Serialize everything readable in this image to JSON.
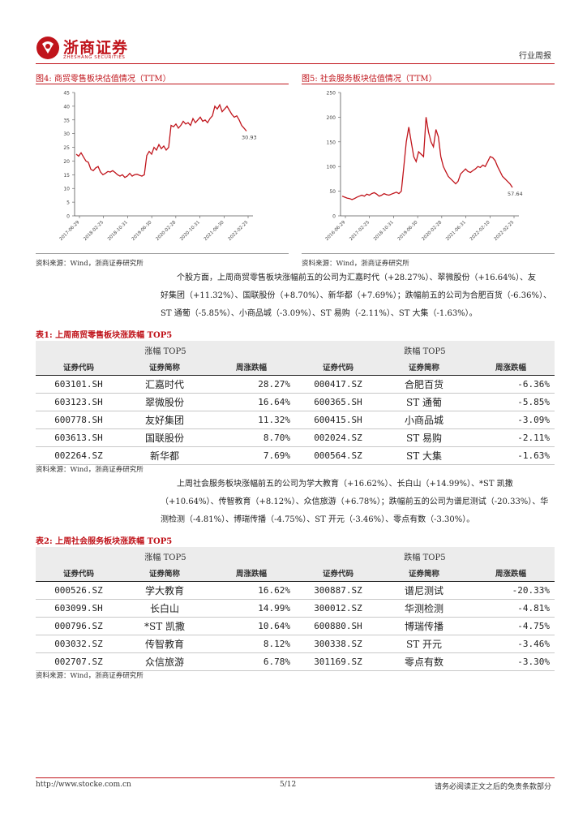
{
  "header": {
    "brand_cn": "浙商证券",
    "brand_en": "ZHESHANG SECURITIES",
    "category": "行业周报"
  },
  "fig4": {
    "title": "图4:  商贸零售板块估值情况（TTM）",
    "last_label": "30.93",
    "source": "资料来源：Wind，浙商证券研究所",
    "chart_data": {
      "type": "line",
      "ylim": [
        0,
        45
      ],
      "yticks": [
        "0",
        "5",
        "10",
        "15",
        "20",
        "25",
        "30",
        "35",
        "40",
        "45"
      ],
      "xticks": [
        "2017-06-29",
        "2018-02-25",
        "2018-10-31",
        "2019-06-30",
        "2020-02-28",
        "2020-10-31",
        "2021-06-30",
        "2022-02-25"
      ],
      "values": [
        22.5,
        21.8,
        23.0,
        21.5,
        20.0,
        19.5,
        17.0,
        16.5,
        17.5,
        18.0,
        16.0,
        15.0,
        15.5,
        16.2,
        16.0,
        16.5,
        15.8,
        15.0,
        14.5,
        15.0,
        14.0,
        14.5,
        15.5,
        14.5,
        15.0,
        15.2,
        14.8,
        14.5,
        15.0,
        22.0,
        23.5,
        22.5,
        25.0,
        24.0,
        26.0,
        24.5,
        25.5,
        24.0,
        25.0,
        33.0,
        32.5,
        33.5,
        32.0,
        33.0,
        34.5,
        33.5,
        34.0,
        33.0,
        35.5,
        34.0,
        35.0,
        36.0,
        34.5,
        35.0,
        34.0,
        35.5,
        36.5,
        40.0,
        39.0,
        40.5,
        38.0,
        39.0,
        40.0,
        38.5,
        37.0,
        36.0,
        36.5,
        35.0,
        33.0,
        32.0,
        30.93
      ]
    }
  },
  "fig5": {
    "title": "图5:  社会服务板块估值情况（TTM）",
    "last_label": "57.64",
    "source": "资料来源：Wind，浙商证券研究所",
    "chart_data": {
      "type": "line",
      "ylim": [
        0,
        250
      ],
      "yticks": [
        "0",
        "50",
        "100",
        "150",
        "200",
        "250"
      ],
      "xticks": [
        "2016-06-29",
        "2017-02-25",
        "2018-10-31",
        "2019-06-30",
        "2020-02-28",
        "2021-06-31",
        "2022-02-10",
        "2022-02-25"
      ],
      "values": [
        40,
        38,
        36,
        35,
        33,
        35,
        38,
        40,
        42,
        40,
        44,
        42,
        45,
        47,
        44,
        40,
        42,
        45,
        43,
        42,
        44,
        46,
        48,
        45,
        50,
        100,
        150,
        180,
        150,
        120,
        110,
        130,
        125,
        120,
        200,
        170,
        150,
        140,
        175,
        160,
        120,
        100,
        90,
        80,
        75,
        70,
        65,
        70,
        85,
        90,
        95,
        90,
        88,
        92,
        95,
        100,
        98,
        103,
        100,
        110,
        120,
        118,
        112,
        100,
        90,
        80,
        75,
        70,
        65,
        57.64
      ]
    }
  },
  "para1": {
    "line1": "个股方面，上周商贸零售板块涨幅前五的公司为汇嘉时代（+28.27%）、翠微股份（+16.64%）、友",
    "line2": "好集团（+11.32%）、国联股份（+8.70%）、新华都（+7.69%）；跌幅前五的公司为合肥百货（-6.36%）、",
    "line3": "ST 通葡（-5.85%）、小商品城（-3.09%）、ST 易购（-2.11%）、ST 大集（-1.63%）。"
  },
  "table1": {
    "title": "表1:  上周商贸零售板块涨跌幅 TOP5",
    "group_up": "涨幅 TOP5",
    "group_down": "跌幅 TOP5",
    "h_code": "证券代码",
    "h_name": "证券简称",
    "h_chg": "周涨跌幅",
    "rows": [
      {
        "c1": "603101.SH",
        "n1": "汇嘉时代",
        "p1": "28.27%",
        "c2": "000417.SZ",
        "n2": "合肥百货",
        "p2": "-6.36%"
      },
      {
        "c1": "603123.SH",
        "n1": "翠微股份",
        "p1": "16.64%",
        "c2": "600365.SH",
        "n2": "ST 通葡",
        "p2": "-5.85%"
      },
      {
        "c1": "600778.SH",
        "n1": "友好集团",
        "p1": "11.32%",
        "c2": "600415.SH",
        "n2": "小商品城",
        "p2": "-3.09%"
      },
      {
        "c1": "603613.SH",
        "n1": "国联股份",
        "p1": "8.70%",
        "c2": "002024.SZ",
        "n2": "ST 易购",
        "p2": "-2.11%"
      },
      {
        "c1": "002264.SZ",
        "n1": "新华都",
        "p1": "7.69%",
        "c2": "000564.SZ",
        "n2": "ST 大集",
        "p2": "-1.63%"
      }
    ],
    "source": "资料来源：Wind，浙商证券研究所"
  },
  "para2": {
    "line1": "上周社会服务板块涨幅前五的公司为学大教育（+16.62%）、长白山（+14.99%）、*ST 凯撒",
    "line2": "（+10.64%）、传智教育（+8.12%）、众信旅游（+6.78%）；跌幅前五的公司为谱尼测试（-20.33%）、华",
    "line3": "测检测（-4.81%）、博瑞传播（-4.75%）、ST 开元（-3.46%）、零点有数（-3.30%）。"
  },
  "table2": {
    "title": "表2:  上周社会服务板块涨跌幅 TOP5",
    "group_up": "涨幅 TOP5",
    "group_down": "跌幅 TOP5",
    "h_code": "证券代码",
    "h_name": "证券简称",
    "h_chg": "周涨跌幅",
    "rows": [
      {
        "c1": "000526.SZ",
        "n1": "学大教育",
        "p1": "16.62%",
        "c2": "300887.SZ",
        "n2": "谱尼测试",
        "p2": "-20.33%"
      },
      {
        "c1": "603099.SH",
        "n1": "长白山",
        "p1": "14.99%",
        "c2": "300012.SZ",
        "n2": "华测检测",
        "p2": "-4.81%"
      },
      {
        "c1": "000796.SZ",
        "n1": "*ST 凯撒",
        "p1": "10.64%",
        "c2": "600880.SH",
        "n2": "博瑞传播",
        "p2": "-4.75%"
      },
      {
        "c1": "003032.SZ",
        "n1": "传智教育",
        "p1": "8.12%",
        "c2": "300338.SZ",
        "n2": "ST 开元",
        "p2": "-3.46%"
      },
      {
        "c1": "002707.SZ",
        "n1": "众信旅游",
        "p1": "6.78%",
        "c2": "301169.SZ",
        "n2": "零点有数",
        "p2": "-3.30%"
      }
    ],
    "source": "资料来源：Wind，浙商证券研究所"
  },
  "footer": {
    "url": "http://www.stocke.com.cn",
    "page": "5/12",
    "disclaimer": "请务必阅读正文之后的免责条款部分"
  }
}
